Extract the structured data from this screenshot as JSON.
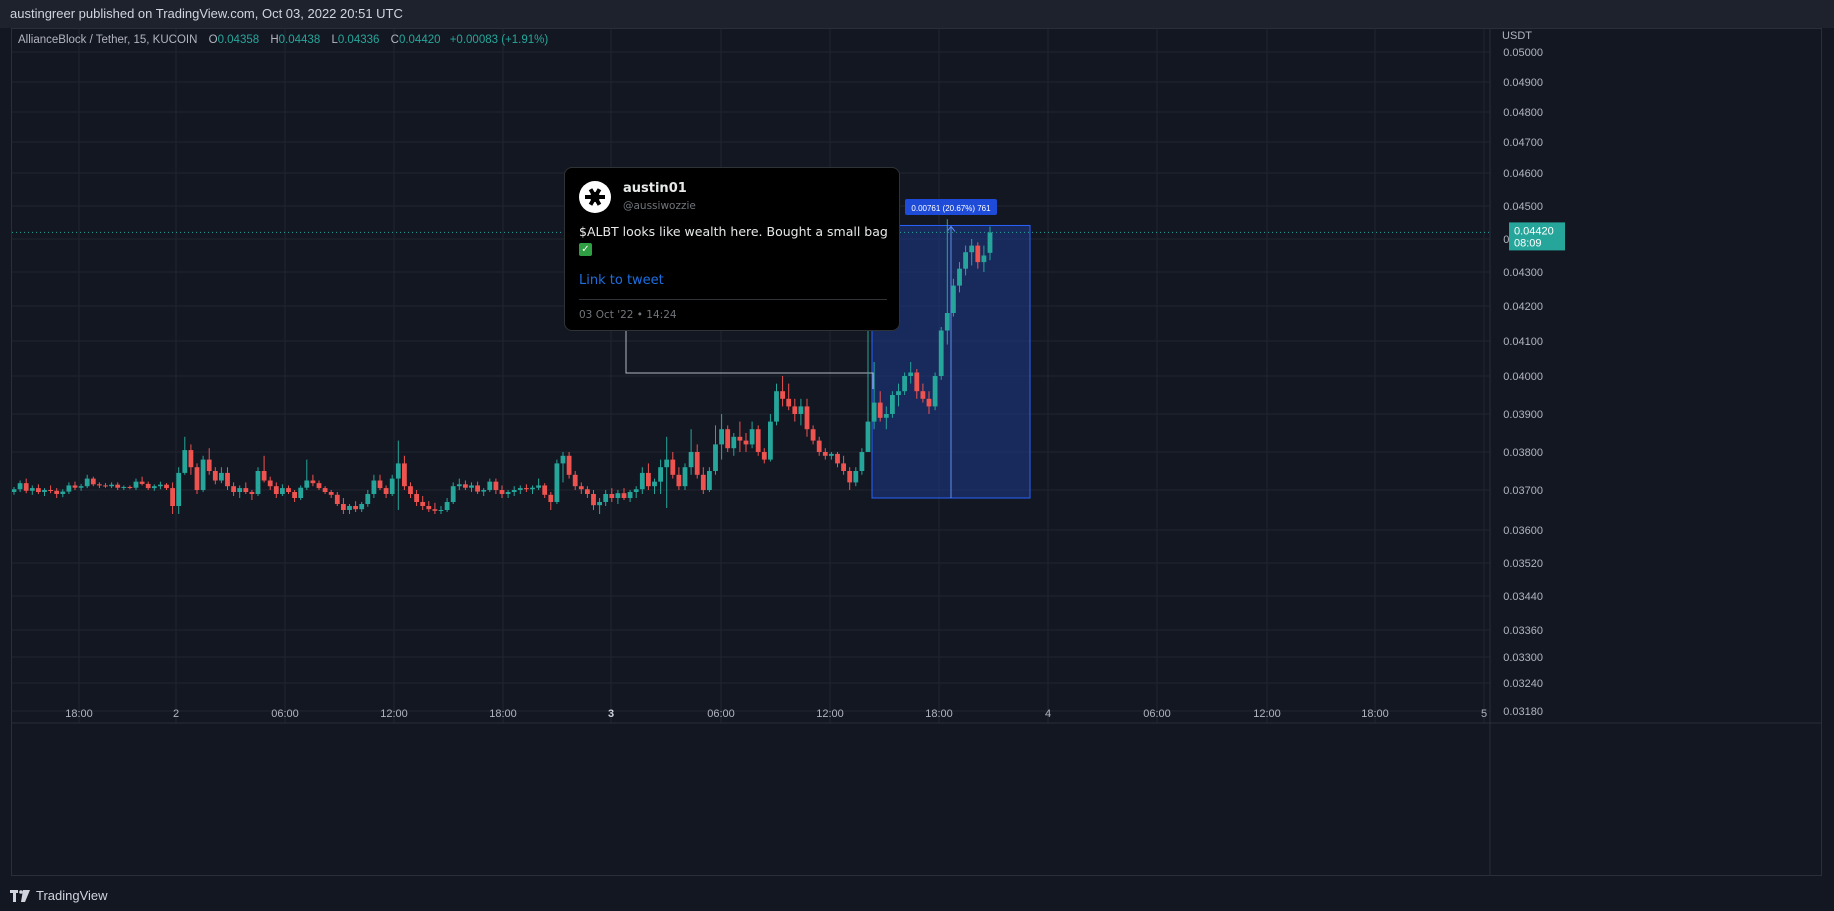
{
  "header": {
    "published_text": "austingreer published on TradingView.com, Oct 03, 2022 20:51 UTC"
  },
  "legend": {
    "symbol": "AllianceBlock / Tether, 15, KUCOIN",
    "open_label": "O",
    "open": "0.04358",
    "high_label": "H",
    "high": "0.04438",
    "low_label": "L",
    "low": "0.04336",
    "close_label": "C",
    "close": "0.04420",
    "change": "+0.00083 (+1.91%)"
  },
  "price_axis": {
    "currency": "USDT",
    "current_price": "0.04420",
    "countdown": "08:09"
  },
  "measure_label": "0.00761 (20.67%) 761",
  "tweet": {
    "name": "austin01",
    "handle": "@aussiwozzie",
    "text": "$ALBT looks like wealth here. Bought a small bag",
    "link": "Link to tweet",
    "date": "03 Oct '22 • 14:24"
  },
  "footer": {
    "brand": "TradingView",
    "logo_icon": "tradingview-logo-icon"
  },
  "colors": {
    "background": "#131722",
    "up": "#26a69a",
    "down": "#ef5350",
    "grid": "#1f2430",
    "measure_fill": "#1e3a8a",
    "measure_border": "#2962ff"
  },
  "chart_data": {
    "type": "candlestick",
    "symbol": "AllianceBlock / Tether",
    "timeframe": "15",
    "exchange": "KUCOIN",
    "y_tick_labels": [
      "0.05000",
      "0.04900",
      "0.04800",
      "0.04700",
      "0.04600",
      "0.04500",
      "0.04400",
      "0.04300",
      "0.04200",
      "0.04100",
      "0.04000",
      "0.03900",
      "0.03800",
      "0.03700",
      "0.03600",
      "0.03520",
      "0.03440",
      "0.03360",
      "0.03300",
      "0.03240",
      "0.03180"
    ],
    "x_tick_labels": [
      "18:00",
      "2",
      "06:00",
      "12:00",
      "18:00",
      "3",
      "06:00",
      "12:00",
      "18:00",
      "4",
      "06:00",
      "12:00",
      "18:00",
      "5"
    ],
    "candles": [
      [
        0.03695,
        0.03708,
        0.03688,
        0.03702
      ],
      [
        0.03702,
        0.03725,
        0.03695,
        0.03718
      ],
      [
        0.03718,
        0.0373,
        0.03692,
        0.03698
      ],
      [
        0.03698,
        0.03712,
        0.03688,
        0.03705
      ],
      [
        0.03705,
        0.03715,
        0.0369,
        0.03695
      ],
      [
        0.03695,
        0.03705,
        0.03685,
        0.037
      ],
      [
        0.037,
        0.03712,
        0.03692,
        0.03698
      ],
      [
        0.03698,
        0.03705,
        0.0368,
        0.0369
      ],
      [
        0.0369,
        0.03702,
        0.03682,
        0.03696
      ],
      [
        0.03696,
        0.0372,
        0.0369,
        0.03712
      ],
      [
        0.03712,
        0.03722,
        0.037,
        0.03706
      ],
      [
        0.03706,
        0.03716,
        0.03698,
        0.0371
      ],
      [
        0.0371,
        0.0374,
        0.03705,
        0.0373
      ],
      [
        0.0373,
        0.03735,
        0.0371,
        0.03715
      ],
      [
        0.03715,
        0.0372,
        0.03705,
        0.03712
      ],
      [
        0.03712,
        0.03718,
        0.03706,
        0.0371
      ],
      [
        0.0371,
        0.0372,
        0.03705,
        0.03714
      ],
      [
        0.03714,
        0.0372,
        0.037,
        0.03706
      ],
      [
        0.03706,
        0.03712,
        0.037,
        0.03708
      ],
      [
        0.03708,
        0.03712,
        0.03702,
        0.03706
      ],
      [
        0.03706,
        0.0373,
        0.037,
        0.03722
      ],
      [
        0.03722,
        0.03735,
        0.03712,
        0.03716
      ],
      [
        0.03716,
        0.03722,
        0.037,
        0.03705
      ],
      [
        0.03705,
        0.03715,
        0.03698,
        0.0371
      ],
      [
        0.0371,
        0.03722,
        0.03702,
        0.03714
      ],
      [
        0.03714,
        0.03718,
        0.037,
        0.03705
      ],
      [
        0.03705,
        0.0372,
        0.0364,
        0.0366
      ],
      [
        0.0366,
        0.0376,
        0.0364,
        0.03745
      ],
      [
        0.03745,
        0.0384,
        0.0374,
        0.03805
      ],
      [
        0.03805,
        0.0382,
        0.0374,
        0.0376
      ],
      [
        0.0376,
        0.0377,
        0.0369,
        0.037
      ],
      [
        0.037,
        0.0379,
        0.03695,
        0.0378
      ],
      [
        0.0378,
        0.0381,
        0.0374,
        0.0375
      ],
      [
        0.0375,
        0.0376,
        0.03715,
        0.03725
      ],
      [
        0.03725,
        0.0376,
        0.03718,
        0.03745
      ],
      [
        0.03745,
        0.0376,
        0.037,
        0.0371
      ],
      [
        0.0371,
        0.0372,
        0.03685,
        0.03695
      ],
      [
        0.03695,
        0.03712,
        0.0368,
        0.03705
      ],
      [
        0.03705,
        0.0372,
        0.0369,
        0.03695
      ],
      [
        0.03695,
        0.037,
        0.03675,
        0.0369
      ],
      [
        0.0369,
        0.0376,
        0.03685,
        0.0375
      ],
      [
        0.0375,
        0.0379,
        0.0372,
        0.03725
      ],
      [
        0.03725,
        0.03735,
        0.037,
        0.0371
      ],
      [
        0.0371,
        0.0372,
        0.0368,
        0.0369
      ],
      [
        0.0369,
        0.03715,
        0.03685,
        0.03705
      ],
      [
        0.03705,
        0.03712,
        0.0369,
        0.03695
      ],
      [
        0.03695,
        0.037,
        0.0367,
        0.0368
      ],
      [
        0.0368,
        0.03712,
        0.03675,
        0.03706
      ],
      [
        0.03706,
        0.0378,
        0.037,
        0.03725
      ],
      [
        0.03725,
        0.0374,
        0.0371,
        0.03718
      ],
      [
        0.03718,
        0.03725,
        0.037,
        0.03705
      ],
      [
        0.03705,
        0.0371,
        0.0369,
        0.03695
      ],
      [
        0.03695,
        0.037,
        0.0368,
        0.03688
      ],
      [
        0.03688,
        0.03695,
        0.0366,
        0.03665
      ],
      [
        0.03665,
        0.0368,
        0.0364,
        0.0365
      ],
      [
        0.0365,
        0.03665,
        0.0364,
        0.0366
      ],
      [
        0.0366,
        0.03672,
        0.03645,
        0.03652
      ],
      [
        0.03652,
        0.0367,
        0.03645,
        0.03665
      ],
      [
        0.03665,
        0.037,
        0.03658,
        0.0369
      ],
      [
        0.0369,
        0.0374,
        0.0368,
        0.03725
      ],
      [
        0.03725,
        0.0374,
        0.037,
        0.03705
      ],
      [
        0.03705,
        0.03712,
        0.0368,
        0.0369
      ],
      [
        0.0369,
        0.0374,
        0.03685,
        0.0373
      ],
      [
        0.0373,
        0.0383,
        0.0365,
        0.0377
      ],
      [
        0.0377,
        0.0379,
        0.037,
        0.0371
      ],
      [
        0.0371,
        0.0372,
        0.0368,
        0.0369
      ],
      [
        0.0369,
        0.037,
        0.0366,
        0.0367
      ],
      [
        0.0367,
        0.03685,
        0.0365,
        0.0366
      ],
      [
        0.0366,
        0.03672,
        0.03645,
        0.03652
      ],
      [
        0.03652,
        0.03668,
        0.0364,
        0.03648
      ],
      [
        0.03648,
        0.0366,
        0.0364,
        0.0365
      ],
      [
        0.0365,
        0.0368,
        0.03645,
        0.0367
      ],
      [
        0.0367,
        0.0372,
        0.03665,
        0.0371
      ],
      [
        0.0371,
        0.0373,
        0.037,
        0.03715
      ],
      [
        0.03715,
        0.03725,
        0.037,
        0.03706
      ],
      [
        0.03706,
        0.0372,
        0.03695,
        0.03712
      ],
      [
        0.03712,
        0.03722,
        0.0369,
        0.03696
      ],
      [
        0.03696,
        0.03705,
        0.03685,
        0.037
      ],
      [
        0.037,
        0.0373,
        0.03695,
        0.03722
      ],
      [
        0.03722,
        0.0373,
        0.0369,
        0.037
      ],
      [
        0.037,
        0.03712,
        0.0368,
        0.0369
      ],
      [
        0.0369,
        0.037,
        0.0368,
        0.03695
      ],
      [
        0.03695,
        0.0371,
        0.03685,
        0.037
      ],
      [
        0.037,
        0.03712,
        0.0369,
        0.03705
      ],
      [
        0.03705,
        0.03715,
        0.03695,
        0.03702
      ],
      [
        0.03702,
        0.03712,
        0.0369,
        0.03706
      ],
      [
        0.03706,
        0.0373,
        0.037,
        0.03712
      ],
      [
        0.03712,
        0.03718,
        0.0368,
        0.03688
      ],
      [
        0.03688,
        0.03695,
        0.0365,
        0.0367
      ],
      [
        0.0367,
        0.0378,
        0.03665,
        0.0377
      ],
      [
        0.0377,
        0.038,
        0.0372,
        0.0379
      ],
      [
        0.0379,
        0.038,
        0.0373,
        0.0374
      ],
      [
        0.0374,
        0.0375,
        0.037,
        0.0371
      ],
      [
        0.0371,
        0.0372,
        0.0369,
        0.03702
      ],
      [
        0.03702,
        0.0371,
        0.0368,
        0.0369
      ],
      [
        0.0369,
        0.037,
        0.0365,
        0.03662
      ],
      [
        0.03662,
        0.0368,
        0.0364,
        0.0367
      ],
      [
        0.0367,
        0.037,
        0.0366,
        0.0369
      ],
      [
        0.0369,
        0.03705,
        0.0367,
        0.0368
      ],
      [
        0.0368,
        0.037,
        0.03665,
        0.03692
      ],
      [
        0.03692,
        0.03705,
        0.03675,
        0.0368
      ],
      [
        0.0368,
        0.037,
        0.0367,
        0.03695
      ],
      [
        0.03695,
        0.0371,
        0.0368,
        0.03702
      ],
      [
        0.03702,
        0.0376,
        0.0369,
        0.03745
      ],
      [
        0.03745,
        0.0377,
        0.037,
        0.0371
      ],
      [
        0.0371,
        0.0373,
        0.0369,
        0.03722
      ],
      [
        0.03722,
        0.0378,
        0.0369,
        0.0376
      ],
      [
        0.0376,
        0.0384,
        0.03655,
        0.0378
      ],
      [
        0.0378,
        0.038,
        0.0373,
        0.0374
      ],
      [
        0.0374,
        0.0376,
        0.037,
        0.0371
      ],
      [
        0.0371,
        0.0377,
        0.037,
        0.0376
      ],
      [
        0.0376,
        0.0386,
        0.0374,
        0.038
      ],
      [
        0.038,
        0.0382,
        0.0373,
        0.0374
      ],
      [
        0.0374,
        0.0376,
        0.0369,
        0.037
      ],
      [
        0.037,
        0.0376,
        0.03695,
        0.0375
      ],
      [
        0.0375,
        0.0387,
        0.0374,
        0.0382
      ],
      [
        0.0382,
        0.039,
        0.0378,
        0.0386
      ],
      [
        0.0386,
        0.0387,
        0.038,
        0.0381
      ],
      [
        0.0381,
        0.0385,
        0.0379,
        0.0384
      ],
      [
        0.0384,
        0.0388,
        0.038,
        0.0383
      ],
      [
        0.0383,
        0.0385,
        0.038,
        0.0382
      ],
      [
        0.0382,
        0.0388,
        0.0381,
        0.0386
      ],
      [
        0.0386,
        0.0387,
        0.0379,
        0.038
      ],
      [
        0.038,
        0.0381,
        0.0377,
        0.0378
      ],
      [
        0.0378,
        0.039,
        0.03775,
        0.0388
      ],
      [
        0.0388,
        0.0398,
        0.0387,
        0.0396
      ],
      [
        0.0396,
        0.04,
        0.0392,
        0.0394
      ],
      [
        0.0394,
        0.0398,
        0.0391,
        0.0392
      ],
      [
        0.0392,
        0.0394,
        0.0388,
        0.039
      ],
      [
        0.039,
        0.0394,
        0.0387,
        0.0392
      ],
      [
        0.0392,
        0.0394,
        0.0384,
        0.0386
      ],
      [
        0.0386,
        0.0387,
        0.0382,
        0.0383
      ],
      [
        0.0383,
        0.0384,
        0.0379,
        0.038
      ],
      [
        0.038,
        0.0381,
        0.0378,
        0.0379
      ],
      [
        0.0379,
        0.038,
        0.0378,
        0.03795
      ],
      [
        0.03795,
        0.038,
        0.0376,
        0.0377
      ],
      [
        0.0377,
        0.0379,
        0.0374,
        0.0375
      ],
      [
        0.0375,
        0.0376,
        0.037,
        0.0372
      ],
      [
        0.0372,
        0.0376,
        0.0371,
        0.0375
      ],
      [
        0.0375,
        0.0381,
        0.0374,
        0.038
      ],
      [
        0.038,
        0.0447,
        0.038,
        0.0388
      ],
      [
        0.0388,
        0.0404,
        0.0386,
        0.0393
      ],
      [
        0.0393,
        0.0396,
        0.0388,
        0.0389
      ],
      [
        0.0389,
        0.0392,
        0.0386,
        0.039
      ],
      [
        0.039,
        0.0396,
        0.0389,
        0.0395
      ],
      [
        0.0395,
        0.0398,
        0.0392,
        0.0396
      ],
      [
        0.0396,
        0.0401,
        0.0395,
        0.04
      ],
      [
        0.04,
        0.0404,
        0.0398,
        0.0401
      ],
      [
        0.0401,
        0.0402,
        0.0394,
        0.0396
      ],
      [
        0.0396,
        0.0398,
        0.0393,
        0.0394
      ],
      [
        0.0394,
        0.0396,
        0.039,
        0.0392
      ],
      [
        0.0392,
        0.0401,
        0.0391,
        0.04
      ],
      [
        0.04,
        0.0414,
        0.0399,
        0.0413
      ],
      [
        0.0413,
        0.0446,
        0.0409,
        0.0418
      ],
      [
        0.0418,
        0.0428,
        0.0417,
        0.0426
      ],
      [
        0.0426,
        0.0433,
        0.0424,
        0.0431
      ],
      [
        0.0431,
        0.0438,
        0.0429,
        0.0436
      ],
      [
        0.0436,
        0.044,
        0.0432,
        0.0438
      ],
      [
        0.0438,
        0.0439,
        0.0431,
        0.0433
      ],
      [
        0.0433,
        0.0438,
        0.043,
        0.0435
      ],
      [
        0.04358,
        0.04438,
        0.04336,
        0.0442
      ]
    ],
    "current_price": 0.0442,
    "measure": {
      "start": 0.0368,
      "end": 0.04441,
      "change": 0.00761,
      "percent": 20.67,
      "ticks": 761
    }
  }
}
